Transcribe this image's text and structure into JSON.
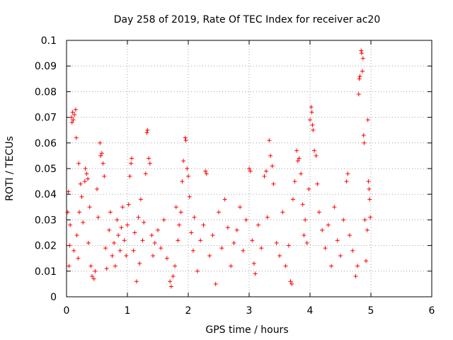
{
  "chart_data": {
    "type": "scatter",
    "title": "Day 258 of 2019, Rate Of TEC Index for receiver ac20",
    "xlabel": "GPS time / hours",
    "ylabel": "ROTI / TECUs",
    "xlim": [
      0,
      6
    ],
    "ylim": [
      0,
      0.1
    ],
    "grid": true,
    "marker": "+",
    "color": "#ff0000",
    "x_ticks": [
      "0",
      "1",
      "2",
      "3",
      "4",
      "5",
      "6"
    ],
    "y_ticks": [
      "0",
      "0.01",
      "0.02",
      "0.03",
      "0.04",
      "0.05",
      "0.06",
      "0.07",
      "0.08",
      "0.09",
      "0.1"
    ],
    "series": [
      {
        "name": "ROTI",
        "points": [
          [
            0.02,
            0.033
          ],
          [
            0.03,
            0.041
          ],
          [
            0.04,
            0.012
          ],
          [
            0.05,
            0.02
          ],
          [
            0.06,
            0.028
          ],
          [
            0.08,
            0.07
          ],
          [
            0.09,
            0.068
          ],
          [
            0.1,
            0.072
          ],
          [
            0.11,
            0.069
          ],
          [
            0.12,
            0.018
          ],
          [
            0.13,
            0.071
          ],
          [
            0.15,
            0.073
          ],
          [
            0.16,
            0.062
          ],
          [
            0.17,
            0.024
          ],
          [
            0.19,
            0.015
          ],
          [
            0.2,
            0.052
          ],
          [
            0.21,
            0.033
          ],
          [
            0.23,
            0.044
          ],
          [
            0.25,
            0.039
          ],
          [
            0.27,
            0.029
          ],
          [
            0.3,
            0.045
          ],
          [
            0.31,
            0.05
          ],
          [
            0.33,
            0.048
          ],
          [
            0.35,
            0.046
          ],
          [
            0.36,
            0.021
          ],
          [
            0.38,
            0.035
          ],
          [
            0.4,
            0.012
          ],
          [
            0.42,
            0.008
          ],
          [
            0.45,
            0.007
          ],
          [
            0.47,
            0.01
          ],
          [
            0.5,
            0.042
          ],
          [
            0.52,
            0.031
          ],
          [
            0.55,
            0.06
          ],
          [
            0.56,
            0.055
          ],
          [
            0.58,
            0.056
          ],
          [
            0.6,
            0.052
          ],
          [
            0.62,
            0.047
          ],
          [
            0.64,
            0.019
          ],
          [
            0.66,
            0.011
          ],
          [
            0.7,
            0.026
          ],
          [
            0.72,
            0.033
          ],
          [
            0.75,
            0.016
          ],
          [
            0.78,
            0.021
          ],
          [
            0.8,
            0.012
          ],
          [
            0.83,
            0.03
          ],
          [
            0.85,
            0.024
          ],
          [
            0.88,
            0.018
          ],
          [
            0.9,
            0.027
          ],
          [
            0.92,
            0.035
          ],
          [
            0.95,
            0.022
          ],
          [
            0.98,
            0.016
          ],
          [
            1.0,
            0.028
          ],
          [
            1.02,
            0.036
          ],
          [
            1.04,
            0.047
          ],
          [
            1.06,
            0.052
          ],
          [
            1.07,
            0.054
          ],
          [
            1.1,
            0.018
          ],
          [
            1.12,
            0.025
          ],
          [
            1.15,
            0.006
          ],
          [
            1.18,
            0.031
          ],
          [
            1.2,
            0.013
          ],
          [
            1.22,
            0.038
          ],
          [
            1.25,
            0.022
          ],
          [
            1.27,
            0.029
          ],
          [
            1.3,
            0.048
          ],
          [
            1.32,
            0.064
          ],
          [
            1.33,
            0.065
          ],
          [
            1.35,
            0.054
          ],
          [
            1.37,
            0.052
          ],
          [
            1.4,
            0.024
          ],
          [
            1.42,
            0.016
          ],
          [
            1.45,
            0.021
          ],
          [
            1.5,
            0.026
          ],
          [
            1.55,
            0.019
          ],
          [
            1.6,
            0.03
          ],
          [
            1.65,
            0.015
          ],
          [
            1.7,
            0.006
          ],
          [
            1.72,
            0.004
          ],
          [
            1.75,
            0.008
          ],
          [
            1.78,
            0.012
          ],
          [
            1.8,
            0.035
          ],
          [
            1.83,
            0.022
          ],
          [
            1.85,
            0.028
          ],
          [
            1.88,
            0.033
          ],
          [
            1.9,
            0.045
          ],
          [
            1.92,
            0.053
          ],
          [
            1.95,
            0.062
          ],
          [
            1.96,
            0.061
          ],
          [
            1.98,
            0.05
          ],
          [
            2.0,
            0.047
          ],
          [
            2.02,
            0.039
          ],
          [
            2.05,
            0.025
          ],
          [
            2.08,
            0.018
          ],
          [
            2.1,
            0.031
          ],
          [
            2.15,
            0.01
          ],
          [
            2.2,
            0.022
          ],
          [
            2.25,
            0.028
          ],
          [
            2.28,
            0.049
          ],
          [
            2.3,
            0.048
          ],
          [
            2.35,
            0.016
          ],
          [
            2.4,
            0.024
          ],
          [
            2.45,
            0.005
          ],
          [
            2.5,
            0.033
          ],
          [
            2.55,
            0.019
          ],
          [
            2.6,
            0.038
          ],
          [
            2.65,
            0.027
          ],
          [
            2.7,
            0.012
          ],
          [
            2.75,
            0.021
          ],
          [
            2.8,
            0.026
          ],
          [
            2.85,
            0.035
          ],
          [
            2.9,
            0.018
          ],
          [
            2.95,
            0.03
          ],
          [
            3.0,
            0.05
          ],
          [
            3.02,
            0.049
          ],
          [
            3.05,
            0.022
          ],
          [
            3.08,
            0.013
          ],
          [
            3.1,
            0.009
          ],
          [
            3.15,
            0.028
          ],
          [
            3.2,
            0.019
          ],
          [
            3.25,
            0.047
          ],
          [
            3.28,
            0.049
          ],
          [
            3.3,
            0.031
          ],
          [
            3.33,
            0.061
          ],
          [
            3.35,
            0.055
          ],
          [
            3.38,
            0.051
          ],
          [
            3.4,
            0.044
          ],
          [
            3.45,
            0.021
          ],
          [
            3.5,
            0.016
          ],
          [
            3.55,
            0.033
          ],
          [
            3.6,
            0.012
          ],
          [
            3.65,
            0.02
          ],
          [
            3.68,
            0.006
          ],
          [
            3.7,
            0.005
          ],
          [
            3.72,
            0.038
          ],
          [
            3.75,
            0.045
          ],
          [
            3.78,
            0.057
          ],
          [
            3.8,
            0.053
          ],
          [
            3.82,
            0.054
          ],
          [
            3.85,
            0.048
          ],
          [
            3.88,
            0.036
          ],
          [
            3.9,
            0.024
          ],
          [
            3.92,
            0.03
          ],
          [
            3.95,
            0.021
          ],
          [
            3.98,
            0.042
          ],
          [
            4.0,
            0.069
          ],
          [
            4.02,
            0.074
          ],
          [
            4.03,
            0.072
          ],
          [
            4.04,
            0.067
          ],
          [
            4.05,
            0.065
          ],
          [
            4.07,
            0.057
          ],
          [
            4.1,
            0.055
          ],
          [
            4.12,
            0.044
          ],
          [
            4.15,
            0.033
          ],
          [
            4.2,
            0.026
          ],
          [
            4.25,
            0.019
          ],
          [
            4.3,
            0.028
          ],
          [
            4.35,
            0.012
          ],
          [
            4.4,
            0.035
          ],
          [
            4.45,
            0.022
          ],
          [
            4.5,
            0.016
          ],
          [
            4.55,
            0.03
          ],
          [
            4.6,
            0.045
          ],
          [
            4.62,
            0.048
          ],
          [
            4.65,
            0.024
          ],
          [
            4.7,
            0.018
          ],
          [
            4.75,
            0.008
          ],
          [
            4.78,
            0.012
          ],
          [
            4.8,
            0.079
          ],
          [
            4.81,
            0.085
          ],
          [
            4.82,
            0.086
          ],
          [
            4.84,
            0.096
          ],
          [
            4.85,
            0.095
          ],
          [
            4.86,
            0.088
          ],
          [
            4.87,
            0.093
          ],
          [
            4.88,
            0.063
          ],
          [
            4.89,
            0.06
          ],
          [
            4.9,
            0.03
          ],
          [
            4.92,
            0.014
          ],
          [
            4.94,
            0.026
          ],
          [
            4.95,
            0.069
          ],
          [
            4.96,
            0.045
          ],
          [
            4.97,
            0.042
          ],
          [
            4.98,
            0.038
          ],
          [
            4.99,
            0.031
          ]
        ]
      }
    ]
  }
}
